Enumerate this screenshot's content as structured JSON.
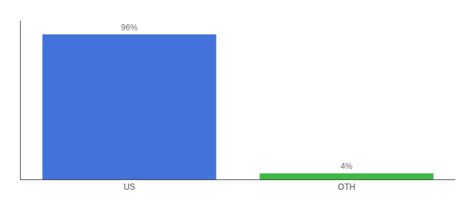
{
  "chart_data": {
    "type": "bar",
    "categories": [
      "US",
      "OTH"
    ],
    "values": [
      96,
      4
    ],
    "value_labels": [
      "96%",
      "4%"
    ],
    "colors": [
      "#4472db",
      "#3cb843"
    ],
    "ylim": [
      0,
      105
    ],
    "data_labels": true,
    "tick_labels": "x",
    "grid": false
  }
}
